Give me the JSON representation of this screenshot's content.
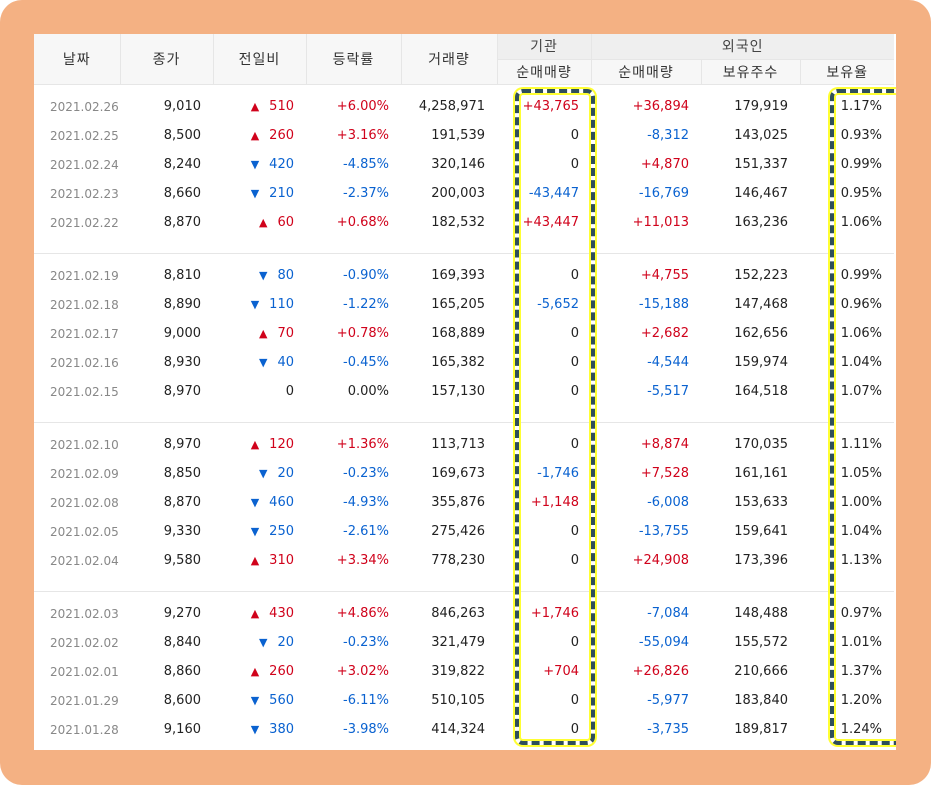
{
  "headers": {
    "date": "날짜",
    "close": "종가",
    "change": "전일비",
    "rate": "등락률",
    "volume": "거래량",
    "institution_group": "기관",
    "institution_net": "순매매량",
    "foreign_group": "외국인",
    "foreign_net": "순매매량",
    "foreign_shares": "보유주수",
    "foreign_ratio": "보유율"
  },
  "colors": {
    "up": "#d0021b",
    "down": "#0a62d0",
    "frame": "#f4b183",
    "highlight_border": "#2f4f5a",
    "highlight_glow": "#ffff33"
  },
  "groups": [
    [
      {
        "date": "2021.02.26",
        "close": "9,010",
        "dir": "up",
        "change": "510",
        "rate": "+6.00%",
        "volume": "4,258,971",
        "inst": "+43,765",
        "for_net": "+36,894",
        "shares": "179,919",
        "ratio": "1.17%"
      },
      {
        "date": "2021.02.25",
        "close": "8,500",
        "dir": "up",
        "change": "260",
        "rate": "+3.16%",
        "volume": "191,539",
        "inst": "0",
        "for_net": "-8,312",
        "shares": "143,025",
        "ratio": "0.93%"
      },
      {
        "date": "2021.02.24",
        "close": "8,240",
        "dir": "down",
        "change": "420",
        "rate": "-4.85%",
        "volume": "320,146",
        "inst": "0",
        "for_net": "+4,870",
        "shares": "151,337",
        "ratio": "0.99%"
      },
      {
        "date": "2021.02.23",
        "close": "8,660",
        "dir": "down",
        "change": "210",
        "rate": "-2.37%",
        "volume": "200,003",
        "inst": "-43,447",
        "for_net": "-16,769",
        "shares": "146,467",
        "ratio": "0.95%"
      },
      {
        "date": "2021.02.22",
        "close": "8,870",
        "dir": "up",
        "change": "60",
        "rate": "+0.68%",
        "volume": "182,532",
        "inst": "+43,447",
        "for_net": "+11,013",
        "shares": "163,236",
        "ratio": "1.06%"
      }
    ],
    [
      {
        "date": "2021.02.19",
        "close": "8,810",
        "dir": "down",
        "change": "80",
        "rate": "-0.90%",
        "volume": "169,393",
        "inst": "0",
        "for_net": "+4,755",
        "shares": "152,223",
        "ratio": "0.99%"
      },
      {
        "date": "2021.02.18",
        "close": "8,890",
        "dir": "down",
        "change": "110",
        "rate": "-1.22%",
        "volume": "165,205",
        "inst": "-5,652",
        "for_net": "-15,188",
        "shares": "147,468",
        "ratio": "0.96%"
      },
      {
        "date": "2021.02.17",
        "close": "9,000",
        "dir": "up",
        "change": "70",
        "rate": "+0.78%",
        "volume": "168,889",
        "inst": "0",
        "for_net": "+2,682",
        "shares": "162,656",
        "ratio": "1.06%"
      },
      {
        "date": "2021.02.16",
        "close": "8,930",
        "dir": "down",
        "change": "40",
        "rate": "-0.45%",
        "volume": "165,382",
        "inst": "0",
        "for_net": "-4,544",
        "shares": "159,974",
        "ratio": "1.04%"
      },
      {
        "date": "2021.02.15",
        "close": "8,970",
        "dir": "none",
        "change": "0",
        "rate": "0.00%",
        "volume": "157,130",
        "inst": "0",
        "for_net": "-5,517",
        "shares": "164,518",
        "ratio": "1.07%"
      }
    ],
    [
      {
        "date": "2021.02.10",
        "close": "8,970",
        "dir": "up",
        "change": "120",
        "rate": "+1.36%",
        "volume": "113,713",
        "inst": "0",
        "for_net": "+8,874",
        "shares": "170,035",
        "ratio": "1.11%"
      },
      {
        "date": "2021.02.09",
        "close": "8,850",
        "dir": "down",
        "change": "20",
        "rate": "-0.23%",
        "volume": "169,673",
        "inst": "-1,746",
        "for_net": "+7,528",
        "shares": "161,161",
        "ratio": "1.05%"
      },
      {
        "date": "2021.02.08",
        "close": "8,870",
        "dir": "down",
        "change": "460",
        "rate": "-4.93%",
        "volume": "355,876",
        "inst": "+1,148",
        "for_net": "-6,008",
        "shares": "153,633",
        "ratio": "1.00%"
      },
      {
        "date": "2021.02.05",
        "close": "9,330",
        "dir": "down",
        "change": "250",
        "rate": "-2.61%",
        "volume": "275,426",
        "inst": "0",
        "for_net": "-13,755",
        "shares": "159,641",
        "ratio": "1.04%"
      },
      {
        "date": "2021.02.04",
        "close": "9,580",
        "dir": "up",
        "change": "310",
        "rate": "+3.34%",
        "volume": "778,230",
        "inst": "0",
        "for_net": "+24,908",
        "shares": "173,396",
        "ratio": "1.13%"
      }
    ],
    [
      {
        "date": "2021.02.03",
        "close": "9,270",
        "dir": "up",
        "change": "430",
        "rate": "+4.86%",
        "volume": "846,263",
        "inst": "+1,746",
        "for_net": "-7,084",
        "shares": "148,488",
        "ratio": "0.97%"
      },
      {
        "date": "2021.02.02",
        "close": "8,840",
        "dir": "down",
        "change": "20",
        "rate": "-0.23%",
        "volume": "321,479",
        "inst": "0",
        "for_net": "-55,094",
        "shares": "155,572",
        "ratio": "1.01%"
      },
      {
        "date": "2021.02.01",
        "close": "8,860",
        "dir": "up",
        "change": "260",
        "rate": "+3.02%",
        "volume": "319,822",
        "inst": "+704",
        "for_net": "+26,826",
        "shares": "210,666",
        "ratio": "1.37%"
      },
      {
        "date": "2021.01.29",
        "close": "8,600",
        "dir": "down",
        "change": "560",
        "rate": "-6.11%",
        "volume": "510,105",
        "inst": "0",
        "for_net": "-5,977",
        "shares": "183,840",
        "ratio": "1.20%"
      },
      {
        "date": "2021.01.28",
        "close": "9,160",
        "dir": "down",
        "change": "380",
        "rate": "-3.98%",
        "volume": "414,324",
        "inst": "0",
        "for_net": "-3,735",
        "shares": "189,817",
        "ratio": "1.24%"
      }
    ]
  ]
}
